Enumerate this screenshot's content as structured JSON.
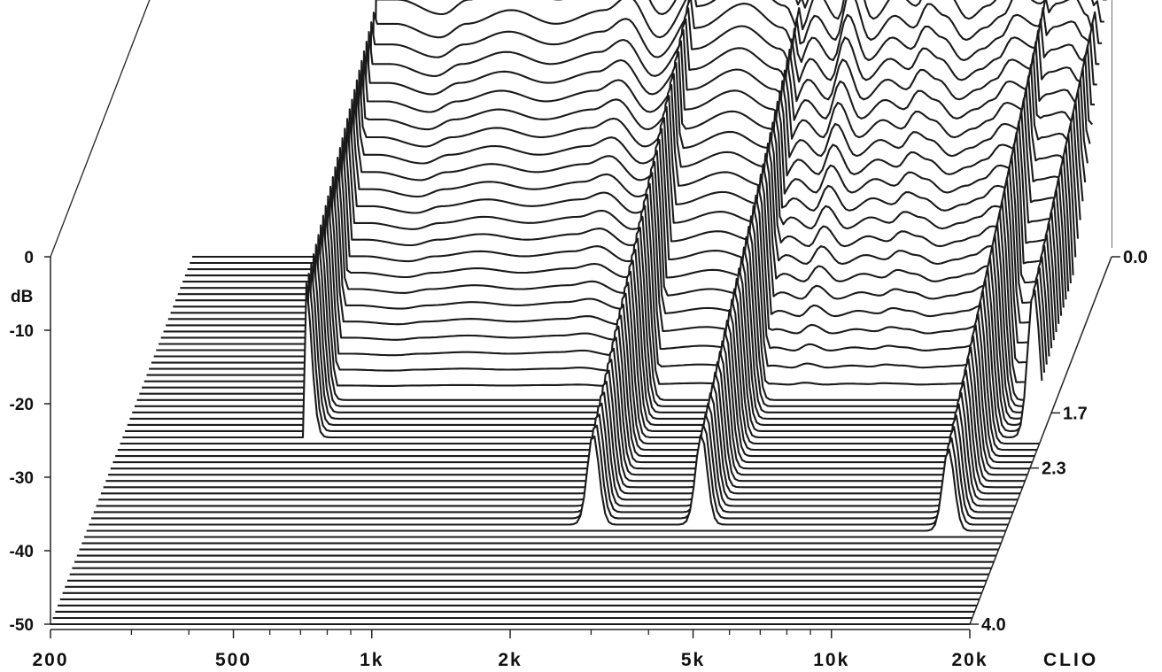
{
  "chart_data": {
    "type": "waterfall",
    "title": "",
    "brand_label": "CLIO",
    "y_axis": {
      "unit_label": "dB",
      "ylim": [
        -50,
        0
      ],
      "ticks": [
        {
          "value": 0,
          "label": "0"
        },
        {
          "value": -10,
          "label": "-10"
        },
        {
          "value": -20,
          "label": "-20"
        },
        {
          "value": -30,
          "label": "-30"
        },
        {
          "value": -40,
          "label": "-40"
        },
        {
          "value": -50,
          "label": "-50"
        }
      ]
    },
    "x_axis": {
      "scale": "log",
      "xlim_hz": [
        200,
        20000
      ],
      "labeled_ticks": [
        {
          "value": 200,
          "label": "200"
        },
        {
          "value": 500,
          "label": "500"
        },
        {
          "value": 1000,
          "label": "1k"
        },
        {
          "value": 2000,
          "label": "2k"
        },
        {
          "value": 5000,
          "label": "5k"
        },
        {
          "value": 10000,
          "label": "10k"
        },
        {
          "value": 20000,
          "label": "20k"
        }
      ],
      "minor_ticks_hz": [
        300,
        400,
        600,
        700,
        800,
        900,
        3000,
        4000,
        6000,
        7000,
        8000,
        9000
      ]
    },
    "z_axis": {
      "unit_label": "",
      "zlim_ms": [
        0.0,
        4.0
      ],
      "ticks": [
        {
          "value": 0.0,
          "label": "0.0"
        },
        {
          "value": 1.7,
          "label": "1.7"
        },
        {
          "value": 2.3,
          "label": "2.3"
        },
        {
          "value": 4.0,
          "label": "4.0"
        }
      ]
    },
    "slices": 60,
    "noise_floor_db": -50,
    "initial_response": {
      "freq_hz": [
        500,
        560,
        700,
        800,
        1000,
        1250,
        1600,
        1800,
        2100,
        2600,
        3300,
        4000,
        4300,
        4700,
        5200,
        5600,
        6200,
        7000,
        7700,
        8300,
        9000,
        10000,
        11000,
        12000,
        13000,
        14500,
        16000,
        17500,
        18500,
        19500
      ],
      "level_db": [
        -15,
        -15,
        -17,
        -15,
        -13,
        -15,
        -13,
        -11,
        -17,
        -9,
        -5,
        -9,
        -13,
        -7,
        -11,
        -3,
        -11,
        -7,
        -9,
        -5,
        -7,
        -11,
        -9,
        -7,
        -3,
        -5,
        -1,
        0,
        -3,
        -8
      ]
    },
    "resonances": [
      {
        "freq_hz": 500,
        "level_db": -15,
        "decay_end_ms": 2.0,
        "end_level_db": -29
      },
      {
        "freq_hz": 2500,
        "level_db": -9,
        "decay_end_ms": 2.95,
        "end_level_db": -38
      },
      {
        "freq_hz": 4300,
        "level_db": -13,
        "decay_end_ms": 2.95,
        "end_level_db": -38
      },
      {
        "freq_hz": 15000,
        "level_db": -8,
        "decay_end_ms": 3.0,
        "end_level_db": -39
      },
      {
        "freq_hz": 19200,
        "level_db": -10,
        "decay_end_ms": 2.0,
        "end_level_db": -30
      }
    ]
  }
}
